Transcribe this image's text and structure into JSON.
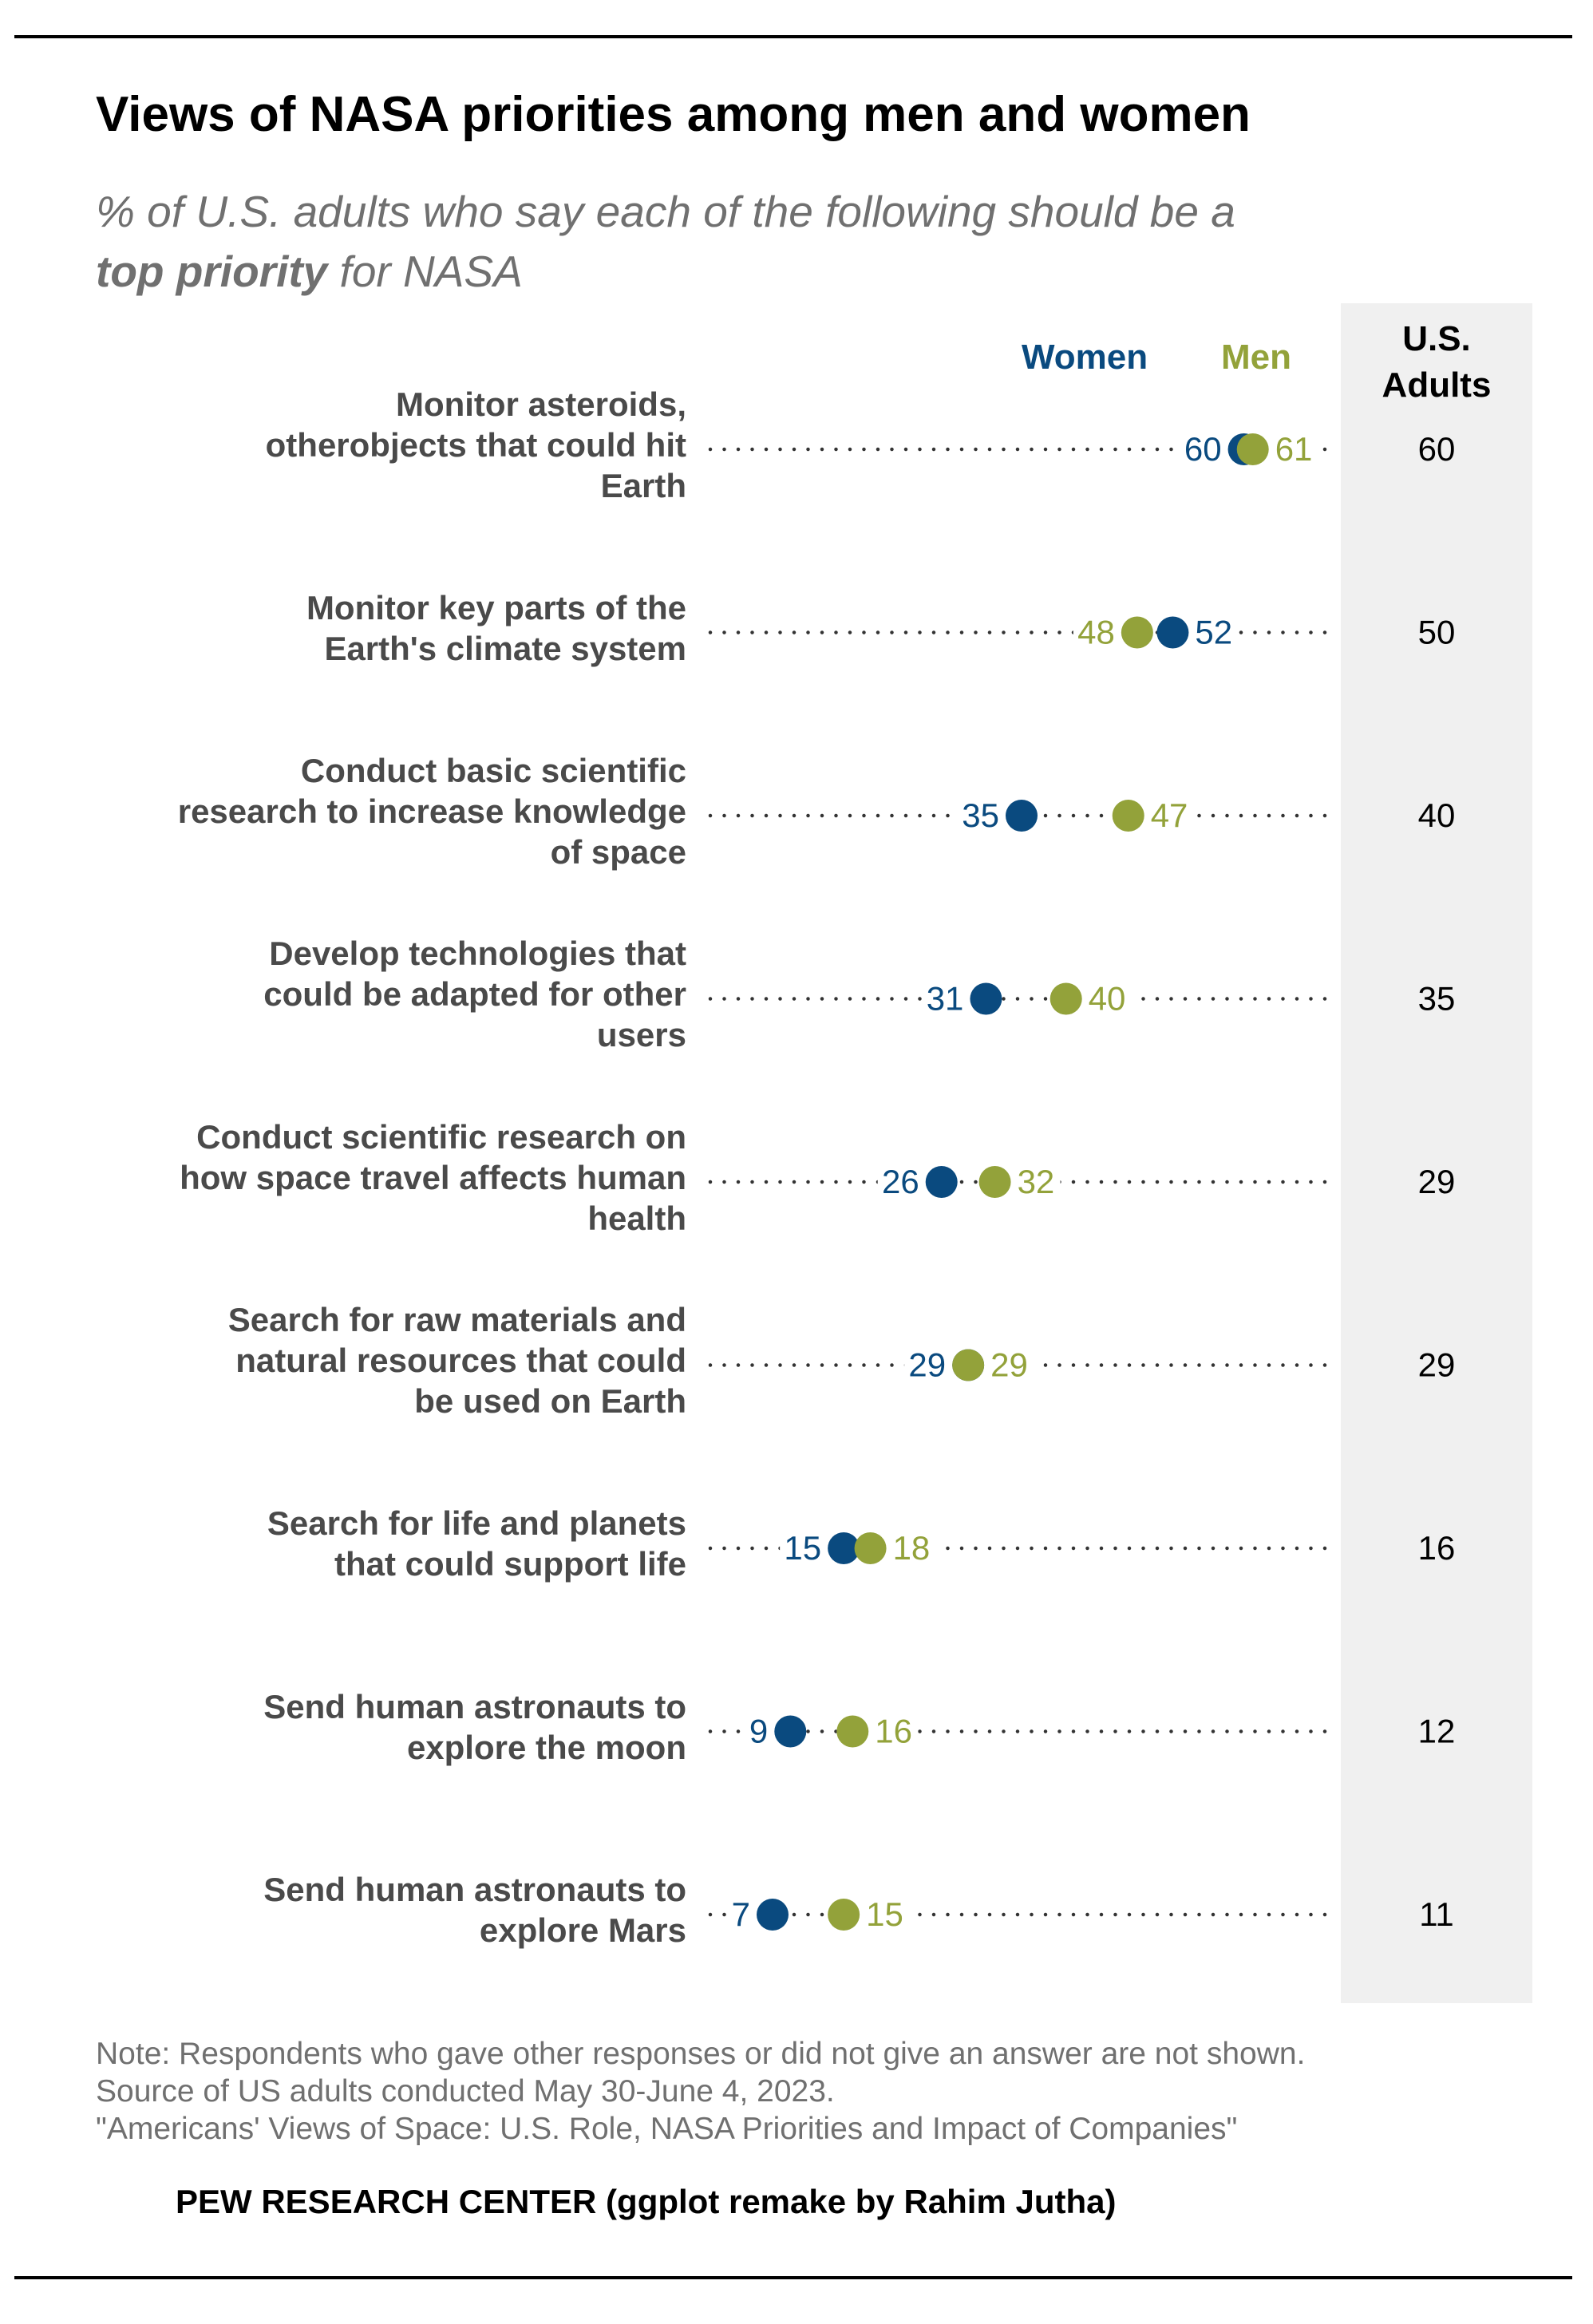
{
  "title": "Views of NASA priorities among men and women",
  "subtitle": {
    "part1": "% of U.S. adults who say each of the following should be a",
    "bold": "top priority",
    "part2": " for NASA"
  },
  "legend": {
    "women": "Women",
    "men": "Men"
  },
  "adults_header": {
    "line1": "U.S.",
    "line2": "Adults"
  },
  "colors": {
    "women": "#0a4a7f",
    "men": "#93a23a",
    "dots": "#333333",
    "label": "#4a4a4a",
    "note": "#707070",
    "band": "#f0f0f0"
  },
  "notes": [
    "Note: Respondents who gave other responses or did not give an answer are not shown.",
    "Source of US adults conducted May 30-June 4, 2023.",
    "\"Americans' Views of Space: U.S. Role, NASA Priorities and Impact of Companies\""
  ],
  "footer": "PEW RESEARCH CENTER  (ggplot remake by Rahim Jutha)",
  "chart_data": {
    "type": "scatter",
    "xlim": [
      0,
      70
    ],
    "grid": false,
    "legend_position": "top",
    "categories": [
      [
        "Monitor asteroids,",
        "otherobjects that could hit",
        "Earth"
      ],
      [
        "Monitor key parts of the",
        "Earth's climate system"
      ],
      [
        "Conduct basic scientific",
        "research to increase knowledge",
        "of space"
      ],
      [
        "Develop technologies that",
        "could be adapted for other",
        "users"
      ],
      [
        "Conduct scientific research on",
        "how space travel affects human",
        "health"
      ],
      [
        "Search for raw materials and",
        "natural resources that could",
        "be used on Earth"
      ],
      [
        "Search for life and planets",
        "that could support life"
      ],
      [
        "Send human astronauts to",
        "explore the moon"
      ],
      [
        "Send human astronauts to",
        "explore Mars"
      ]
    ],
    "series": [
      {
        "name": "Women",
        "values": [
          60,
          52,
          35,
          31,
          26,
          29,
          15,
          9,
          7
        ]
      },
      {
        "name": "Men",
        "values": [
          61,
          48,
          47,
          40,
          32,
          29,
          18,
          16,
          15
        ]
      }
    ],
    "us_adults": [
      60,
      50,
      40,
      35,
      29,
      29,
      16,
      12,
      11
    ]
  }
}
